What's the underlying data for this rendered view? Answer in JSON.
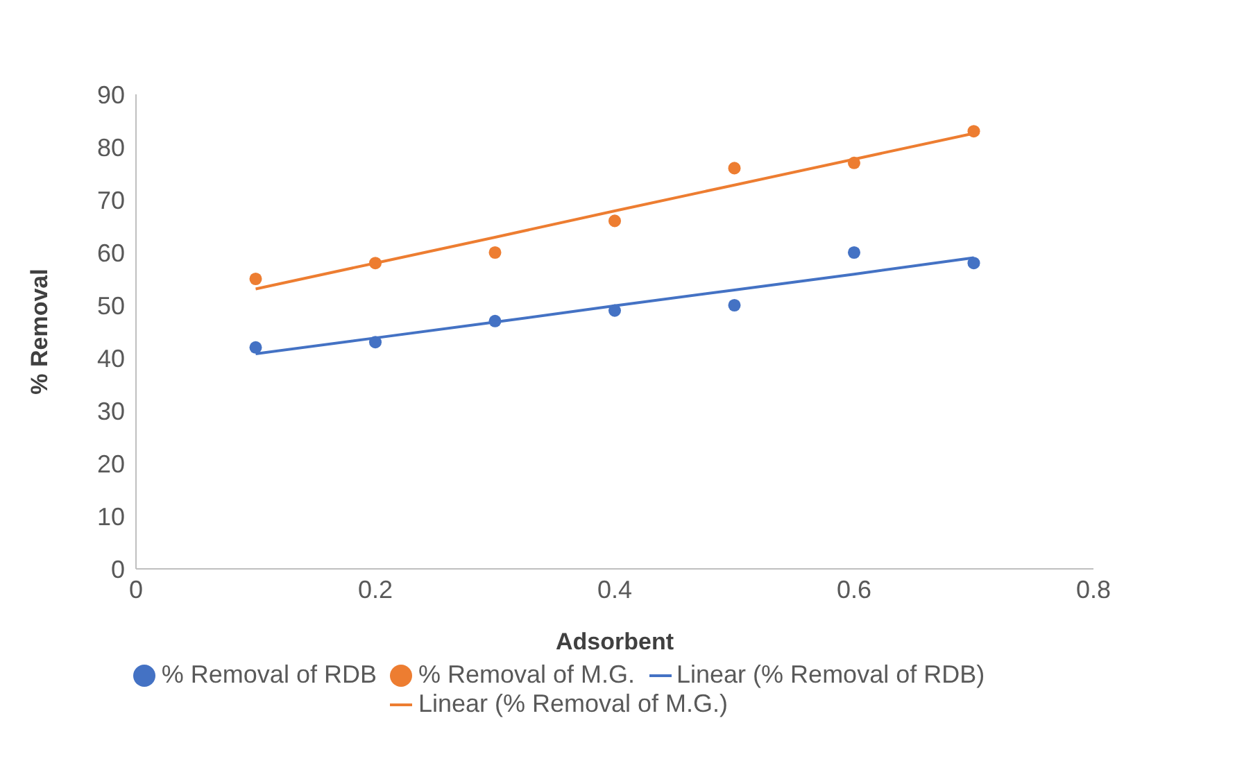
{
  "chart_data": {
    "type": "scatter",
    "xlabel": "Adsorbent",
    "ylabel": "% Removal",
    "xlim": [
      0,
      0.8
    ],
    "xticks": [
      0,
      0.2,
      0.4,
      0.6,
      0.8
    ],
    "ylim": [
      0,
      90
    ],
    "yticks": [
      0,
      10,
      20,
      30,
      40,
      50,
      60,
      70,
      80,
      90
    ],
    "x": [
      0.1,
      0.2,
      0.3,
      0.4,
      0.5,
      0.6,
      0.7
    ],
    "series": [
      {
        "name": "% Removal of RDB",
        "color": "#4472c4",
        "marker": "circle",
        "values": [
          42,
          43,
          47,
          49,
          50,
          60,
          58
        ]
      },
      {
        "name": "% Removal of M.G.",
        "color": "#ed7d31",
        "marker": "circle",
        "values": [
          55,
          58,
          60,
          66,
          76,
          77,
          83
        ]
      },
      {
        "name": "Linear (% Removal of RDB)",
        "type": "line",
        "color": "#4472c4",
        "marker": "none",
        "values": [
          40.8,
          43.8,
          46.8,
          49.9,
          52.9,
          55.9,
          59
        ]
      },
      {
        "name": "Linear (% Removal of M.G.)",
        "type": "line",
        "color": "#ed7d31",
        "marker": "none",
        "values": [
          53.1,
          58,
          62.9,
          67.9,
          72.8,
          77.7,
          82.6
        ]
      }
    ],
    "line_style": "solid",
    "grid": false,
    "legend": "bottom"
  }
}
